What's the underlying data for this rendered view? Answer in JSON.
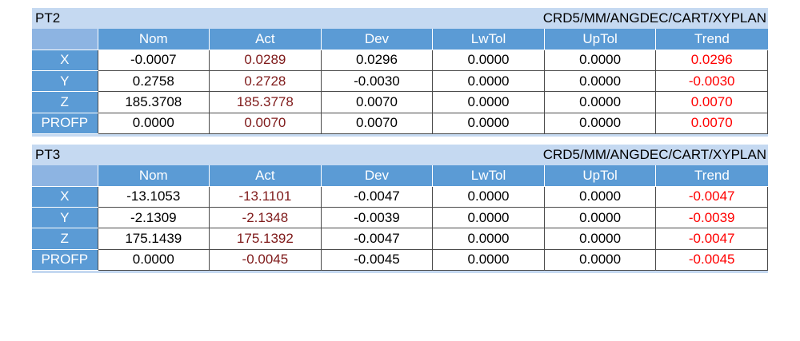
{
  "colors": {
    "section_bg": "#c5d9f1",
    "header_bg": "#5b9bd5",
    "header_text": "#ffffff",
    "act_text": "#7f1a1a",
    "trend_text": "#ff0000"
  },
  "columns": [
    "Nom",
    "Act",
    "Dev",
    "LwTol",
    "UpTol",
    "Trend"
  ],
  "sections": [
    {
      "name": "PT2",
      "coord_system": "CRD5/MM/ANGDEC/CART/XYPLAN",
      "rows": [
        {
          "label": "X",
          "nom": "-0.0007",
          "act": "0.0289",
          "dev": "0.0296",
          "lwtol": "0.0000",
          "uptol": "0.0000",
          "trend": "0.0296"
        },
        {
          "label": "Y",
          "nom": "0.2758",
          "act": "0.2728",
          "dev": "-0.0030",
          "lwtol": "0.0000",
          "uptol": "0.0000",
          "trend": "-0.0030"
        },
        {
          "label": "Z",
          "nom": "185.3708",
          "act": "185.3778",
          "dev": "0.0070",
          "lwtol": "0.0000",
          "uptol": "0.0000",
          "trend": "0.0070"
        },
        {
          "label": "PROFP",
          "nom": "0.0000",
          "act": "0.0070",
          "dev": "0.0070",
          "lwtol": "0.0000",
          "uptol": "0.0000",
          "trend": "0.0070"
        }
      ]
    },
    {
      "name": "PT3",
      "coord_system": "CRD5/MM/ANGDEC/CART/XYPLAN",
      "rows": [
        {
          "label": "X",
          "nom": "-13.1053",
          "act": "-13.1101",
          "dev": "-0.0047",
          "lwtol": "0.0000",
          "uptol": "0.0000",
          "trend": "-0.0047"
        },
        {
          "label": "Y",
          "nom": "-2.1309",
          "act": "-2.1348",
          "dev": "-0.0039",
          "lwtol": "0.0000",
          "uptol": "0.0000",
          "trend": "-0.0039"
        },
        {
          "label": "Z",
          "nom": "175.1439",
          "act": "175.1392",
          "dev": "-0.0047",
          "lwtol": "0.0000",
          "uptol": "0.0000",
          "trend": "-0.0047"
        },
        {
          "label": "PROFP",
          "nom": "0.0000",
          "act": "-0.0045",
          "dev": "-0.0045",
          "lwtol": "0.0000",
          "uptol": "0.0000",
          "trend": "-0.0045"
        }
      ]
    }
  ]
}
